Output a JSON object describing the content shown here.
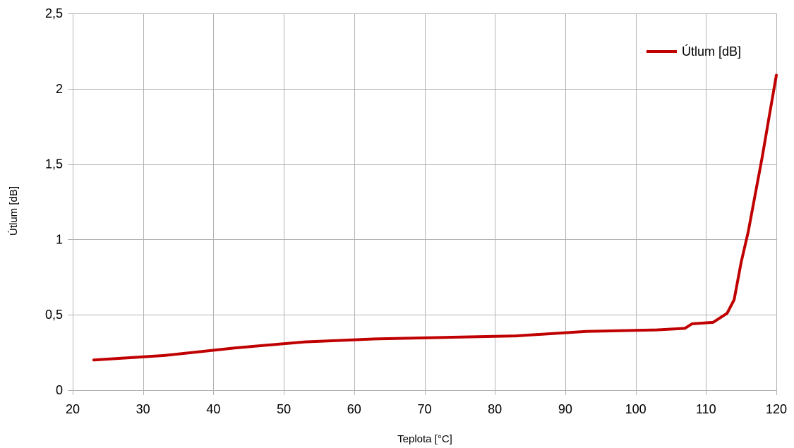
{
  "chart_data": {
    "type": "line",
    "title": "",
    "xlabel": "Teplota [°C]",
    "ylabel": "Útlum [dB]",
    "xlim": [
      20,
      120
    ],
    "ylim": [
      0,
      2.5
    ],
    "x_ticks": [
      20,
      30,
      40,
      50,
      60,
      70,
      80,
      90,
      100,
      110,
      120
    ],
    "x_tick_labels": [
      "20",
      "30",
      "40",
      "50",
      "60",
      "70",
      "80",
      "90",
      "100",
      "110",
      "120"
    ],
    "y_ticks": [
      0,
      0.5,
      1,
      1.5,
      2,
      2.5
    ],
    "y_tick_labels": [
      "0",
      "0,5",
      "1",
      "1,5",
      "2",
      "2,5"
    ],
    "grid": true,
    "legend_position": "top-right",
    "series": [
      {
        "name": "Útlum [dB]",
        "color": "#c00000",
        "x": [
          23,
          33,
          43,
          53,
          63,
          73,
          83,
          93,
          103,
          107,
          108,
          111,
          113,
          114,
          115,
          116,
          117,
          118,
          119,
          120
        ],
        "y": [
          0.2,
          0.23,
          0.28,
          0.32,
          0.34,
          0.35,
          0.36,
          0.39,
          0.4,
          0.41,
          0.44,
          0.45,
          0.51,
          0.6,
          0.85,
          1.05,
          1.3,
          1.55,
          1.82,
          2.09
        ]
      }
    ]
  }
}
